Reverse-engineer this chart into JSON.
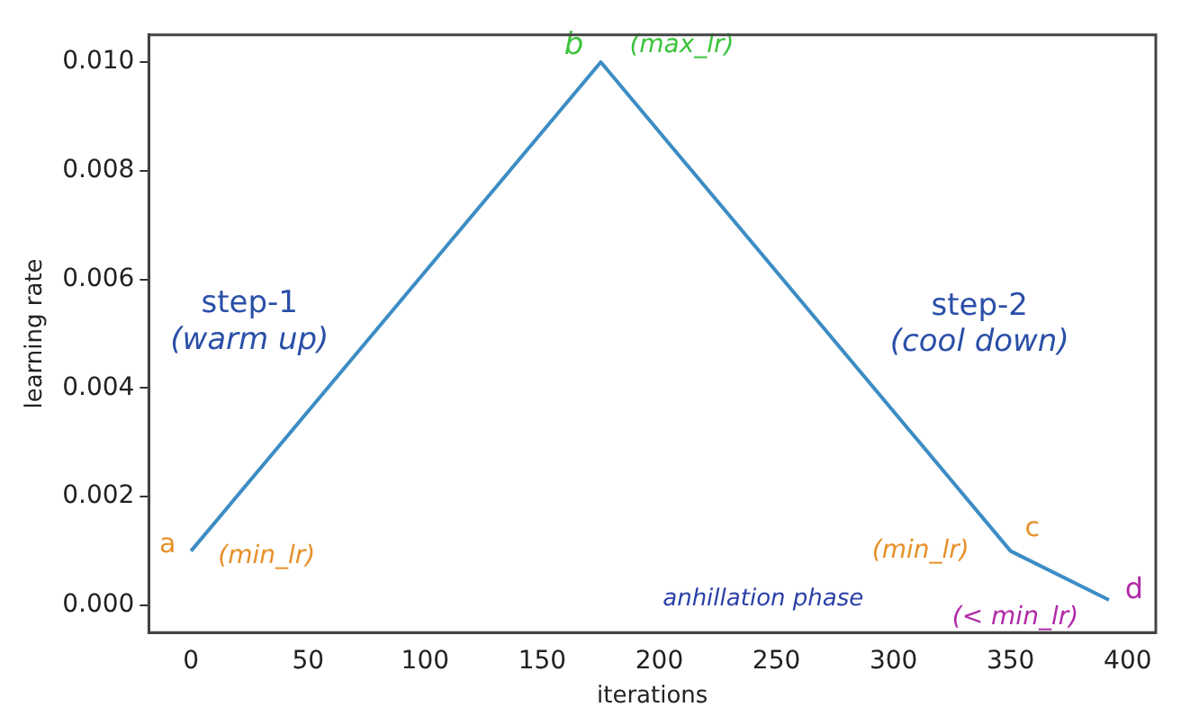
{
  "chart_data": {
    "type": "line",
    "xlabel": "iterations",
    "ylabel": "learning rate",
    "x": [
      0,
      175,
      350,
      392
    ],
    "series": [
      {
        "color": "#3c8dc4",
        "values": [
          0.001,
          0.01,
          0.001,
          0.0001
        ]
      }
    ],
    "xlim": [
      -18,
      412
    ],
    "xticks": [
      0,
      50,
      100,
      150,
      200,
      250,
      300,
      350,
      400
    ],
    "ylim": [
      -0.0005,
      0.0105
    ],
    "yticks": [
      {
        "value": 0,
        "label": "0.000"
      },
      {
        "value": 0.002,
        "label": "0.002"
      },
      {
        "value": 0.004,
        "label": "0.004"
      },
      {
        "value": 0.006,
        "label": "0.006"
      },
      {
        "value": 0.008,
        "label": "0.008"
      },
      {
        "value": 0.01,
        "label": "0.010"
      }
    ],
    "grid": false,
    "legend": false,
    "marker": "none",
    "line_style": "solid",
    "annotations": [
      {
        "text": "a",
        "x": 0,
        "y": 0.001
      },
      {
        "text": "(min_lr)",
        "x": 0,
        "y": 0.001
      },
      {
        "text": "b",
        "x": 175,
        "y": 0.01
      },
      {
        "text": "(max_lr)",
        "x": 175,
        "y": 0.01
      },
      "step-1",
      "(warm up)",
      "step-2",
      "(cool down)",
      {
        "text": "(min_lr)",
        "x": 350,
        "y": 0.001
      },
      {
        "text": "c",
        "x": 350,
        "y": 0.001
      },
      "anhillation phase",
      {
        "text": "(< min_lr)",
        "x": 392,
        "y": 0.0001
      },
      {
        "text": "d",
        "x": 392,
        "y": 0.0001
      }
    ]
  }
}
